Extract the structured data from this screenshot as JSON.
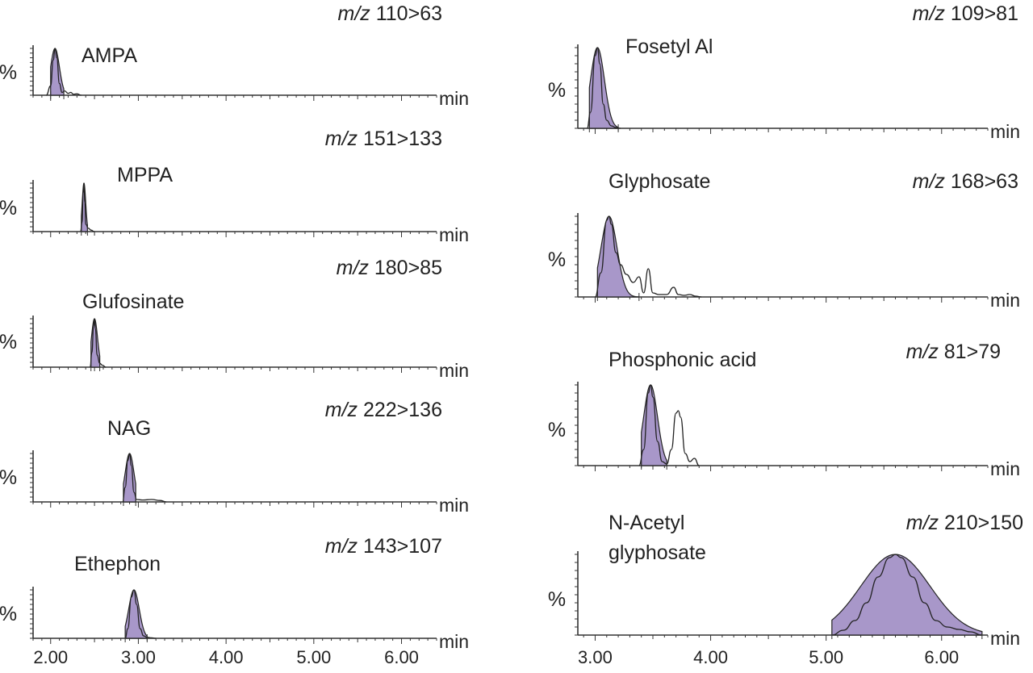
{
  "colors": {
    "peak_fill": "#a897c9",
    "line": "#222222",
    "axis": "#333333"
  },
  "chart_data": [
    {
      "type": "line",
      "column": "left",
      "compound": "AMPA",
      "mz_prefix": "m/z",
      "transition": "110>63",
      "ylabel": "%",
      "xunit": "min",
      "xlim": [
        1.8,
        6.4
      ],
      "peak_rt": 2.05,
      "peak_width": 0.05,
      "shaded_range": [
        2.0,
        2.15
      ],
      "x": [
        1.95,
        2.0,
        2.03,
        2.05,
        2.07,
        2.1,
        2.13,
        2.16,
        2.2,
        2.23,
        2.26,
        2.3,
        2.35
      ],
      "y": [
        0,
        20,
        75,
        100,
        80,
        25,
        6,
        9,
        4,
        6,
        2,
        3,
        0
      ]
    },
    {
      "type": "line",
      "column": "left",
      "compound": "MPPA",
      "mz_prefix": "m/z",
      "transition": "151>133",
      "ylabel": "%",
      "xunit": "min",
      "xlim": [
        1.8,
        6.4
      ],
      "peak_rt": 2.38,
      "peak_width": 0.02,
      "shaded_range": [
        2.35,
        2.42
      ],
      "x": [
        2.34,
        2.36,
        2.37,
        2.38,
        2.39,
        2.4,
        2.43,
        2.46,
        2.5
      ],
      "y": [
        0,
        20,
        80,
        100,
        60,
        15,
        7,
        3,
        0
      ]
    },
    {
      "type": "line",
      "column": "left",
      "compound": "Glufosinate",
      "mz_prefix": "m/z",
      "transition": "180>85",
      "ylabel": "%",
      "xunit": "min",
      "xlim": [
        1.8,
        6.4
      ],
      "peak_rt": 2.5,
      "peak_width": 0.035,
      "shaded_range": [
        2.46,
        2.56
      ],
      "x": [
        2.45,
        2.47,
        2.49,
        2.5,
        2.51,
        2.53,
        2.56,
        2.59,
        2.63
      ],
      "y": [
        0,
        30,
        85,
        100,
        80,
        25,
        8,
        4,
        0
      ]
    },
    {
      "type": "line",
      "column": "left",
      "compound": "NAG",
      "mz_prefix": "m/z",
      "transition": "222>136",
      "ylabel": "%",
      "xunit": "min",
      "xlim": [
        1.8,
        6.4
      ],
      "peak_rt": 2.9,
      "peak_width": 0.05,
      "shaded_range": [
        2.83,
        2.97
      ],
      "x": [
        2.82,
        2.85,
        2.88,
        2.9,
        2.92,
        2.95,
        2.98,
        3.05,
        3.15,
        3.25,
        3.32
      ],
      "y": [
        0,
        30,
        85,
        100,
        75,
        20,
        5,
        4,
        5,
        3,
        0
      ]
    },
    {
      "type": "line",
      "column": "left",
      "compound": "Ethephon",
      "mz_prefix": "m/z",
      "transition": "143>107",
      "ylabel": "%",
      "xunit": "min",
      "xlim": [
        1.8,
        6.4
      ],
      "peak_rt": 2.95,
      "peak_width": 0.06,
      "shaded_range": [
        2.85,
        3.1
      ],
      "x": [
        2.85,
        2.88,
        2.92,
        2.95,
        2.98,
        3.02,
        3.06,
        3.1,
        3.15,
        3.2
      ],
      "y": [
        0,
        20,
        85,
        100,
        70,
        20,
        5,
        2,
        1,
        0
      ]
    },
    {
      "type": "line",
      "column": "right",
      "compound": "Fosetyl Al",
      "mz_prefix": "m/z",
      "transition": "109>81",
      "ylabel": "%",
      "xunit": "min",
      "xlim": [
        2.85,
        6.4
      ],
      "peak_rt": 3.02,
      "peak_width": 0.06,
      "shaded_range": [
        2.95,
        3.2
      ],
      "x": [
        2.93,
        2.96,
        3.0,
        3.02,
        3.04,
        3.07,
        3.1,
        3.14,
        3.18,
        3.22
      ],
      "y": [
        0,
        20,
        90,
        100,
        80,
        30,
        10,
        3,
        1,
        0
      ]
    },
    {
      "type": "line",
      "column": "right",
      "compound": "Glyphosate",
      "mz_prefix": "m/z",
      "transition": "168>63",
      "ylabel": "%",
      "xunit": "min",
      "xlim": [
        2.85,
        6.4
      ],
      "peak_rt": 3.12,
      "peak_width": 0.07,
      "shaded_range": [
        3.02,
        3.38
      ],
      "x": [
        3.0,
        3.05,
        3.1,
        3.12,
        3.14,
        3.18,
        3.22,
        3.27,
        3.33,
        3.38,
        3.42,
        3.46,
        3.5,
        3.55,
        3.62,
        3.68,
        3.72,
        3.77,
        3.82,
        3.87,
        3.92
      ],
      "y": [
        0,
        30,
        95,
        100,
        90,
        55,
        40,
        28,
        18,
        25,
        5,
        35,
        5,
        3,
        3,
        12,
        3,
        2,
        3,
        1,
        0
      ]
    },
    {
      "type": "line",
      "column": "right",
      "compound": "Phosphonic acid",
      "mz_prefix": "m/z",
      "transition": "81>79",
      "ylabel": "%",
      "xunit": "min",
      "xlim": [
        2.85,
        6.4
      ],
      "peak_rt": 3.48,
      "peak_width": 0.06,
      "shaded_range": [
        3.4,
        3.62
      ],
      "x": [
        3.38,
        3.42,
        3.46,
        3.48,
        3.5,
        3.54,
        3.58,
        3.62,
        3.66,
        3.7,
        3.72,
        3.74,
        3.78,
        3.82,
        3.86,
        3.9
      ],
      "y": [
        0,
        20,
        90,
        100,
        85,
        30,
        5,
        2,
        20,
        65,
        68,
        60,
        15,
        5,
        9,
        0
      ]
    },
    {
      "type": "line",
      "column": "right",
      "compound_lines": [
        "N-Acetyl",
        "glyphosate"
      ],
      "mz_prefix": "m/z",
      "transition": "210>150",
      "ylabel": "%",
      "xunit": "min",
      "xlim": [
        2.85,
        6.4
      ],
      "peak_rt": 5.6,
      "peak_width": 0.3,
      "shaded_range": [
        5.05,
        6.35
      ],
      "x": [
        5.05,
        5.15,
        5.25,
        5.35,
        5.45,
        5.55,
        5.6,
        5.65,
        5.75,
        5.85,
        5.95,
        6.05,
        6.15,
        6.25,
        6.35
      ],
      "y": [
        0,
        6,
        18,
        40,
        72,
        96,
        100,
        96,
        72,
        40,
        18,
        10,
        7,
        4,
        0
      ]
    }
  ],
  "x_axis": {
    "left": {
      "ticks": [
        2.0,
        3.0,
        4.0,
        5.0,
        6.0
      ],
      "tick_labels": [
        "2.00",
        "3.00",
        "4.00",
        "5.00",
        "6.00"
      ]
    },
    "right": {
      "ticks": [
        3.0,
        4.0,
        5.0,
        6.0
      ],
      "tick_labels": [
        "3.00",
        "4.00",
        "5.00",
        "6.00"
      ]
    }
  }
}
